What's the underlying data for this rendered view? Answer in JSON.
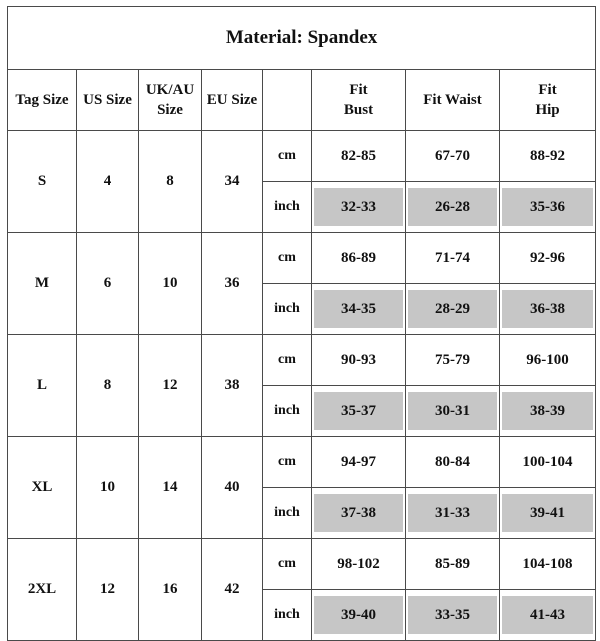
{
  "title": "Material: Spandex",
  "headers": {
    "tag_size": "Tag Size",
    "us_size": "US Size",
    "ukau_size": "UK/AU\nSize",
    "eu_size": "EU Size",
    "unit": "",
    "fit_bust": "Fit\nBust",
    "fit_waist": "Fit Waist",
    "fit_hip": "Fit\nHip"
  },
  "rows": [
    {
      "tag": "S",
      "us": "4",
      "ukau": "8",
      "eu": "34",
      "cm": {
        "unit": "cm",
        "bust": "82-85",
        "waist": "67-70",
        "hip": "88-92"
      },
      "inch": {
        "unit": "inch",
        "bust": "32-33",
        "waist": "26-28",
        "hip": "35-36"
      }
    },
    {
      "tag": "M",
      "us": "6",
      "ukau": "10",
      "eu": "36",
      "cm": {
        "unit": "cm",
        "bust": "86-89",
        "waist": "71-74",
        "hip": "92-96"
      },
      "inch": {
        "unit": "inch",
        "bust": "34-35",
        "waist": "28-29",
        "hip": "36-38"
      }
    },
    {
      "tag": "L",
      "us": "8",
      "ukau": "12",
      "eu": "38",
      "cm": {
        "unit": "cm",
        "bust": "90-93",
        "waist": "75-79",
        "hip": "96-100"
      },
      "inch": {
        "unit": "inch",
        "bust": "35-37",
        "waist": "30-31",
        "hip": "38-39"
      }
    },
    {
      "tag": "XL",
      "us": "10",
      "ukau": "14",
      "eu": "40",
      "cm": {
        "unit": "cm",
        "bust": "94-97",
        "waist": "80-84",
        "hip": "100-104"
      },
      "inch": {
        "unit": "inch",
        "bust": "37-38",
        "waist": "31-33",
        "hip": "39-41"
      }
    },
    {
      "tag": "2XL",
      "us": "12",
      "ukau": "16",
      "eu": "42",
      "cm": {
        "unit": "cm",
        "bust": "98-102",
        "waist": "85-89",
        "hip": "104-108"
      },
      "inch": {
        "unit": "inch",
        "bust": "39-40",
        "waist": "33-35",
        "hip": "41-43"
      }
    }
  ],
  "colors": {
    "shade": "#c6c6c6",
    "border": "#4a4a4a"
  }
}
